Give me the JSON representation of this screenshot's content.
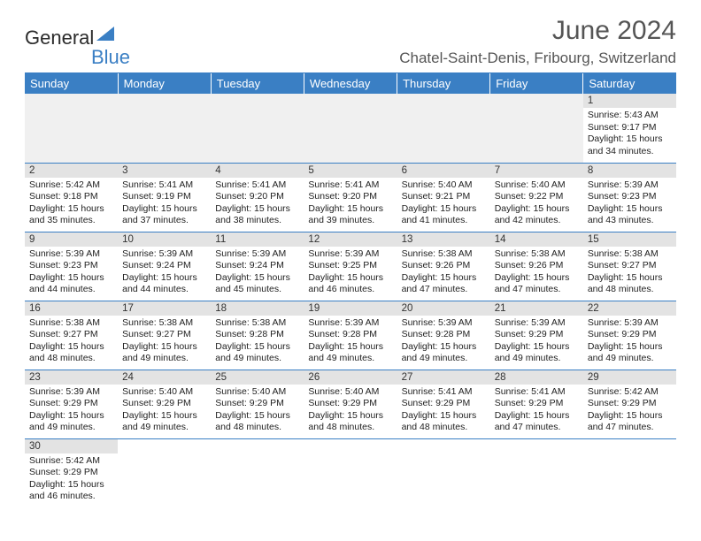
{
  "logo": {
    "part1": "General",
    "part2": "Blue"
  },
  "title": "June 2024",
  "location": "Chatel-Saint-Denis, Fribourg, Switzerland",
  "colors": {
    "brand_blue": "#3a7fc4",
    "header_gray": "#e3e3e3",
    "empty_bg": "#f0f0f0",
    "text": "#222222",
    "title_gray": "#555555"
  },
  "day_headers": [
    "Sunday",
    "Monday",
    "Tuesday",
    "Wednesday",
    "Thursday",
    "Friday",
    "Saturday"
  ],
  "weeks": [
    [
      null,
      null,
      null,
      null,
      null,
      null,
      {
        "n": "1",
        "sr": "5:43 AM",
        "ss": "9:17 PM",
        "dh": "15",
        "dm": "34"
      }
    ],
    [
      {
        "n": "2",
        "sr": "5:42 AM",
        "ss": "9:18 PM",
        "dh": "15",
        "dm": "35"
      },
      {
        "n": "3",
        "sr": "5:41 AM",
        "ss": "9:19 PM",
        "dh": "15",
        "dm": "37"
      },
      {
        "n": "4",
        "sr": "5:41 AM",
        "ss": "9:20 PM",
        "dh": "15",
        "dm": "38"
      },
      {
        "n": "5",
        "sr": "5:41 AM",
        "ss": "9:20 PM",
        "dh": "15",
        "dm": "39"
      },
      {
        "n": "6",
        "sr": "5:40 AM",
        "ss": "9:21 PM",
        "dh": "15",
        "dm": "41"
      },
      {
        "n": "7",
        "sr": "5:40 AM",
        "ss": "9:22 PM",
        "dh": "15",
        "dm": "42"
      },
      {
        "n": "8",
        "sr": "5:39 AM",
        "ss": "9:23 PM",
        "dh": "15",
        "dm": "43"
      }
    ],
    [
      {
        "n": "9",
        "sr": "5:39 AM",
        "ss": "9:23 PM",
        "dh": "15",
        "dm": "44"
      },
      {
        "n": "10",
        "sr": "5:39 AM",
        "ss": "9:24 PM",
        "dh": "15",
        "dm": "44"
      },
      {
        "n": "11",
        "sr": "5:39 AM",
        "ss": "9:24 PM",
        "dh": "15",
        "dm": "45"
      },
      {
        "n": "12",
        "sr": "5:39 AM",
        "ss": "9:25 PM",
        "dh": "15",
        "dm": "46"
      },
      {
        "n": "13",
        "sr": "5:38 AM",
        "ss": "9:26 PM",
        "dh": "15",
        "dm": "47"
      },
      {
        "n": "14",
        "sr": "5:38 AM",
        "ss": "9:26 PM",
        "dh": "15",
        "dm": "47"
      },
      {
        "n": "15",
        "sr": "5:38 AM",
        "ss": "9:27 PM",
        "dh": "15",
        "dm": "48"
      }
    ],
    [
      {
        "n": "16",
        "sr": "5:38 AM",
        "ss": "9:27 PM",
        "dh": "15",
        "dm": "48"
      },
      {
        "n": "17",
        "sr": "5:38 AM",
        "ss": "9:27 PM",
        "dh": "15",
        "dm": "49"
      },
      {
        "n": "18",
        "sr": "5:38 AM",
        "ss": "9:28 PM",
        "dh": "15",
        "dm": "49"
      },
      {
        "n": "19",
        "sr": "5:39 AM",
        "ss": "9:28 PM",
        "dh": "15",
        "dm": "49"
      },
      {
        "n": "20",
        "sr": "5:39 AM",
        "ss": "9:28 PM",
        "dh": "15",
        "dm": "49"
      },
      {
        "n": "21",
        "sr": "5:39 AM",
        "ss": "9:29 PM",
        "dh": "15",
        "dm": "49"
      },
      {
        "n": "22",
        "sr": "5:39 AM",
        "ss": "9:29 PM",
        "dh": "15",
        "dm": "49"
      }
    ],
    [
      {
        "n": "23",
        "sr": "5:39 AM",
        "ss": "9:29 PM",
        "dh": "15",
        "dm": "49"
      },
      {
        "n": "24",
        "sr": "5:40 AM",
        "ss": "9:29 PM",
        "dh": "15",
        "dm": "49"
      },
      {
        "n": "25",
        "sr": "5:40 AM",
        "ss": "9:29 PM",
        "dh": "15",
        "dm": "48"
      },
      {
        "n": "26",
        "sr": "5:40 AM",
        "ss": "9:29 PM",
        "dh": "15",
        "dm": "48"
      },
      {
        "n": "27",
        "sr": "5:41 AM",
        "ss": "9:29 PM",
        "dh": "15",
        "dm": "48"
      },
      {
        "n": "28",
        "sr": "5:41 AM",
        "ss": "9:29 PM",
        "dh": "15",
        "dm": "47"
      },
      {
        "n": "29",
        "sr": "5:42 AM",
        "ss": "9:29 PM",
        "dh": "15",
        "dm": "47"
      }
    ],
    [
      {
        "n": "30",
        "sr": "5:42 AM",
        "ss": "9:29 PM",
        "dh": "15",
        "dm": "46"
      },
      null,
      null,
      null,
      null,
      null,
      null
    ]
  ],
  "labels": {
    "sunrise": "Sunrise:",
    "sunset": "Sunset:",
    "daylight_prefix": "Daylight:",
    "hours_word": "hours",
    "and_word": "and",
    "minutes_word": "minutes."
  }
}
